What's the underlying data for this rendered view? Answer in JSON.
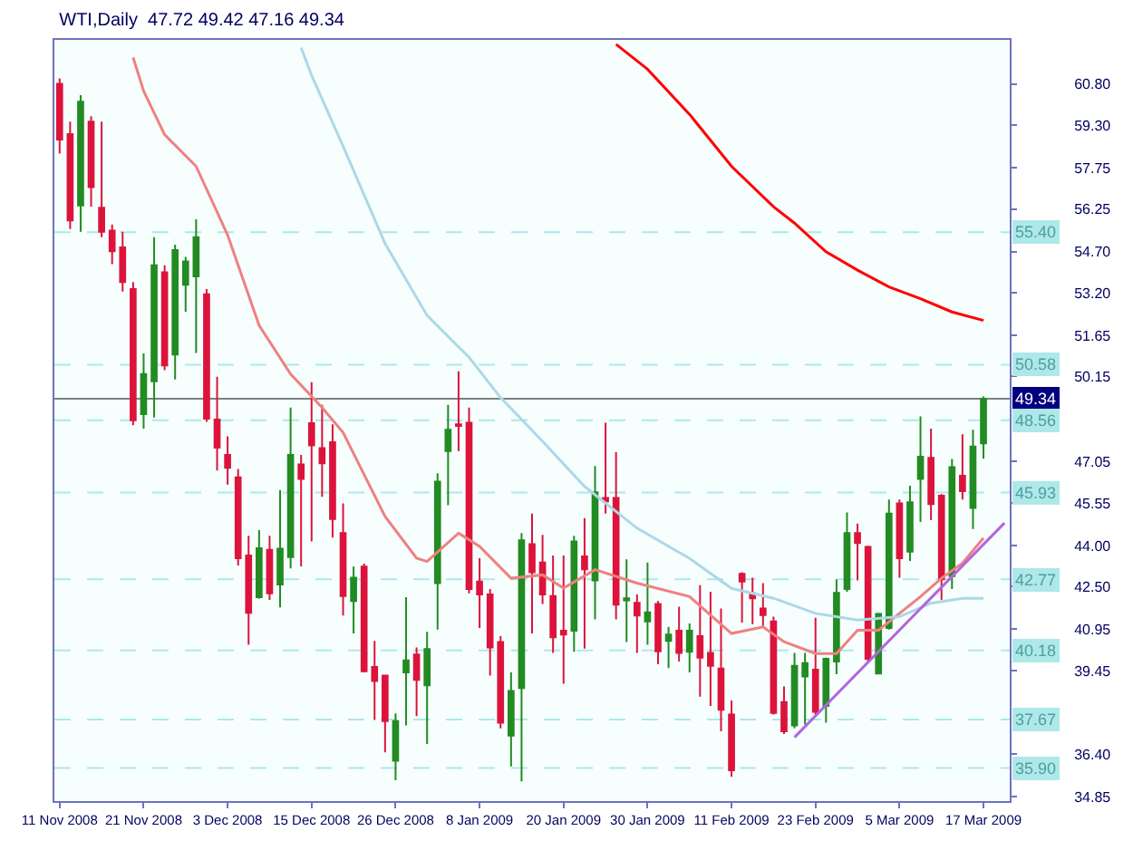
{
  "chart_data": {
    "type": "candlestick",
    "title": "WTI,Daily  47.72 49.42 47.16 49.34",
    "categories": [
      "11 Nov 2008",
      null,
      null,
      null,
      null,
      null,
      null,
      null,
      "21 Nov 2008",
      null,
      null,
      null,
      null,
      null,
      null,
      null,
      "3 Dec 2008",
      null,
      null,
      null,
      null,
      null,
      null,
      null,
      "15 Dec 2008",
      null,
      null,
      null,
      null,
      null,
      null,
      null,
      "26 Dec 2008",
      null,
      null,
      null,
      null,
      null,
      null,
      null,
      "8 Jan 2009",
      null,
      null,
      null,
      null,
      null,
      null,
      null,
      "20 Jan 2009",
      null,
      null,
      null,
      null,
      null,
      null,
      null,
      "30 Jan 2009",
      null,
      null,
      null,
      null,
      null,
      null,
      null,
      "11 Feb 2009",
      null,
      null,
      null,
      null,
      null,
      null,
      null,
      "23 Feb 2009",
      null,
      null,
      null,
      null,
      null,
      null,
      null,
      "5 Mar 2009",
      null,
      null,
      null,
      null,
      null,
      null,
      null,
      "17 Mar 2009",
      null,
      null
    ],
    "ohlc": [
      [
        60.8,
        61.0,
        58.26,
        58.77
      ],
      [
        58.97,
        59.42,
        55.52,
        55.83
      ],
      [
        56.37,
        60.39,
        55.42,
        60.15
      ],
      [
        59.42,
        59.62,
        56.33,
        57.04
      ],
      [
        56.29,
        59.42,
        55.22,
        55.42
      ],
      [
        55.46,
        55.68,
        54.24,
        54.71
      ],
      [
        54.85,
        55.42,
        53.24,
        53.59
      ],
      [
        53.33,
        53.59,
        48.38,
        48.56
      ],
      [
        48.78,
        50.99,
        48.25,
        50.24
      ],
      [
        49.98,
        55.22,
        48.66,
        54.2
      ],
      [
        53.94,
        54.2,
        50.38,
        50.55
      ],
      [
        50.95,
        54.95,
        50.04,
        54.75
      ],
      [
        53.49,
        54.5,
        52.51,
        54.34
      ],
      [
        53.79,
        55.87,
        51.01,
        55.22
      ],
      [
        53.14,
        53.33,
        48.5,
        48.62
      ],
      [
        48.58,
        50.14,
        46.73,
        47.56
      ],
      [
        47.3,
        47.97,
        46.22,
        46.83
      ],
      [
        46.48,
        46.79,
        43.27,
        43.54
      ],
      [
        43.64,
        44.35,
        40.39,
        41.55
      ],
      [
        42.12,
        44.56,
        42.06,
        43.9
      ],
      [
        43.84,
        44.35,
        42.02,
        42.26
      ],
      [
        42.58,
        46.02,
        41.75,
        43.88
      ],
      [
        43.58,
        49.02,
        43.17,
        47.3
      ],
      [
        46.95,
        47.3,
        43.24,
        46.42
      ],
      [
        48.45,
        49.94,
        44.15,
        47.64
      ],
      [
        47.54,
        49.12,
        45.77,
        46.99
      ],
      [
        47.76,
        48.41,
        44.29,
        44.96
      ],
      [
        44.45,
        45.53,
        41.45,
        42.16
      ],
      [
        41.98,
        43.23,
        40.8,
        42.83
      ],
      [
        43.23,
        43.34,
        39.38,
        39.42
      ],
      [
        39.58,
        40.53,
        37.65,
        39.07
      ],
      [
        39.27,
        39.3,
        36.47,
        37.61
      ],
      [
        36.17,
        37.89,
        35.46,
        37.61
      ],
      [
        39.38,
        42.12,
        37.45,
        39.82
      ],
      [
        40.03,
        40.29,
        37.79,
        39.11
      ],
      [
        38.91,
        40.86,
        36.78,
        40.23
      ],
      [
        42.63,
        46.63,
        40.94,
        46.32
      ],
      [
        47.44,
        49.12,
        45.47,
        48.21
      ],
      [
        48.41,
        50.34,
        47.44,
        48.35
      ],
      [
        48.47,
        49.02,
        42.26,
        42.42
      ],
      [
        42.69,
        43.54,
        41.0,
        42.22
      ],
      [
        42.22,
        42.42,
        39.27,
        40.29
      ],
      [
        40.49,
        40.7,
        37.35,
        37.55
      ],
      [
        37.08,
        39.38,
        35.96,
        38.71
      ],
      [
        38.81,
        44.45,
        35.42,
        44.19
      ],
      [
        44.05,
        45.16,
        40.8,
        43.03
      ],
      [
        43.38,
        44.39,
        41.87,
        42.22
      ],
      [
        42.16,
        43.64,
        40.09,
        40.66
      ],
      [
        40.9,
        43.64,
        38.97,
        40.76
      ],
      [
        40.9,
        44.35,
        40.13,
        44.15
      ],
      [
        43.6,
        45.0,
        40.25,
        43.13
      ],
      [
        42.73,
        46.89,
        41.31,
        45.94
      ],
      [
        45.73,
        48.47,
        45.16,
        45.61
      ],
      [
        45.73,
        47.4,
        41.31,
        41.85
      ],
      [
        42.0,
        43.5,
        40.49,
        42.08
      ],
      [
        41.91,
        42.22,
        40.09,
        41.45
      ],
      [
        41.24,
        43.38,
        40.39,
        41.57
      ],
      [
        41.87,
        41.98,
        39.68,
        40.15
      ],
      [
        40.53,
        41.04,
        39.54,
        40.76
      ],
      [
        40.9,
        41.77,
        39.78,
        40.09
      ],
      [
        40.13,
        41.16,
        39.38,
        40.9
      ],
      [
        40.7,
        42.56,
        38.5,
        39.92
      ],
      [
        40.09,
        42.32,
        38.16,
        39.62
      ],
      [
        39.52,
        41.71,
        37.24,
        38.02
      ],
      [
        37.85,
        38.36,
        35.58,
        35.82
      ],
      [
        42.97,
        43.03,
        41.2,
        42.69
      ],
      [
        42.26,
        42.83,
        41.14,
        42.08
      ],
      [
        41.71,
        42.63,
        41.0,
        41.47
      ],
      [
        41.24,
        41.41,
        37.85,
        37.91
      ],
      [
        38.3,
        38.87,
        37.14,
        37.24
      ],
      [
        37.45,
        40.09,
        37.35,
        39.62
      ],
      [
        39.23,
        40.09,
        37.49,
        39.72
      ],
      [
        39.48,
        41.37,
        37.85,
        37.95
      ],
      [
        38.16,
        39.92,
        37.55,
        39.88
      ],
      [
        39.78,
        42.77,
        39.32,
        42.28
      ],
      [
        42.42,
        45.2,
        42.32,
        44.45
      ],
      [
        44.45,
        44.8,
        42.73,
        44.09
      ],
      [
        43.95,
        43.99,
        39.78,
        39.88
      ],
      [
        39.34,
        41.55,
        39.32,
        41.51
      ],
      [
        41.0,
        45.67,
        40.94,
        45.16
      ],
      [
        45.53,
        45.67,
        42.83,
        43.54
      ],
      [
        43.78,
        46.18,
        43.44,
        45.57
      ],
      [
        46.42,
        48.7,
        44.86,
        47.23
      ],
      [
        47.19,
        48.25,
        44.92,
        45.51
      ],
      [
        45.81,
        45.87,
        42.02,
        42.77
      ],
      [
        42.89,
        47.15,
        42.42,
        46.85
      ],
      [
        46.54,
        48.05,
        45.67,
        45.98
      ],
      [
        45.37,
        48.21,
        44.6,
        47.6
      ],
      [
        47.72,
        49.42,
        47.16,
        49.34
      ],
      null,
      null
    ],
    "colors": [
      "#dc143c",
      "#dc143c",
      "#228b22",
      "#dc143c",
      "#dc143c",
      "#dc143c",
      "#dc143c",
      "#dc143c",
      "#228b22",
      "#228b22",
      "#dc143c",
      "#228b22",
      "#228b22",
      "#228b22",
      "#dc143c",
      "#dc143c",
      "#dc143c",
      "#dc143c",
      "#dc143c",
      "#228b22",
      "#dc143c",
      "#228b22",
      "#228b22",
      "#dc143c",
      "#dc143c",
      "#dc143c",
      "#dc143c",
      "#dc143c",
      "#228b22",
      "#dc143c",
      "#dc143c",
      "#dc143c",
      "#228b22",
      "#228b22",
      "#dc143c",
      "#228b22",
      "#228b22",
      "#228b22",
      "#dc143c",
      "#dc143c",
      "#dc143c",
      "#dc143c",
      "#dc143c",
      "#228b22",
      "#228b22",
      "#dc143c",
      "#dc143c",
      "#dc143c",
      "#dc143c",
      "#228b22",
      "#dc143c",
      "#228b22",
      "#dc143c",
      "#dc143c",
      "#228b22",
      "#dc143c",
      "#228b22",
      "#dc143c",
      "#228b22",
      "#dc143c",
      "#228b22",
      "#dc143c",
      "#dc143c",
      "#dc143c",
      "#dc143c",
      "#dc143c",
      "#dc143c",
      "#dc143c",
      "#dc143c",
      "#dc143c",
      "#228b22",
      "#228b22",
      "#dc143c",
      "#228b22",
      "#228b22",
      "#228b22",
      "#dc143c",
      "#dc143c",
      "#228b22",
      "#228b22",
      "#dc143c",
      "#228b22",
      "#228b22",
      "#dc143c",
      "#dc143c",
      "#228b22",
      "#dc143c",
      "#228b22",
      "#228b22",
      null,
      null
    ],
    "series": [
      {
        "type": "line",
        "color": "#ff0000",
        "values": [
          null,
          null,
          null,
          null,
          null,
          null,
          null,
          null,
          null,
          null,
          null,
          null,
          null,
          null,
          null,
          null,
          null,
          null,
          null,
          null,
          null,
          null,
          null,
          null,
          null,
          null,
          null,
          null,
          null,
          null,
          null,
          null,
          null,
          null,
          null,
          null,
          null,
          null,
          null,
          null,
          null,
          null,
          null,
          null,
          null,
          null,
          null,
          null,
          null,
          null,
          null,
          null,
          null,
          62.24,
          null,
          null,
          61.33,
          null,
          null,
          null,
          59.69,
          null,
          null,
          null,
          57.8,
          null,
          null,
          null,
          56.33,
          null,
          55.73,
          null,
          null,
          54.69,
          null,
          null,
          54.02,
          null,
          null,
          53.41,
          null,
          null,
          52.98,
          null,
          null,
          52.5,
          null,
          null,
          52.19,
          null,
          null
        ]
      },
      {
        "type": "line",
        "color": "#f08080",
        "values": [
          null,
          null,
          null,
          null,
          null,
          null,
          null,
          61.76,
          60.54,
          null,
          58.95,
          null,
          null,
          57.8,
          null,
          null,
          55.3,
          null,
          null,
          52.01,
          null,
          null,
          50.24,
          null,
          null,
          49.02,
          null,
          48.11,
          null,
          null,
          null,
          45.06,
          null,
          null,
          43.54,
          43.42,
          null,
          null,
          44.45,
          null,
          43.97,
          null,
          null,
          42.81,
          null,
          null,
          42.93,
          null,
          42.45,
          null,
          null,
          43.12,
          null,
          null,
          null,
          42.63,
          null,
          null,
          null,
          null,
          42.14,
          null,
          null,
          null,
          40.8,
          null,
          null,
          41.04,
          null,
          40.5,
          null,
          null,
          40.07,
          null,
          40.07,
          null,
          40.92,
          null,
          40.92,
          null,
          null,
          null,
          42.14,
          null,
          42.81,
          null,
          43.36,
          null,
          44.27,
          null,
          null
        ]
      },
      {
        "type": "line",
        "color": "#add8e6",
        "values": [
          null,
          null,
          null,
          null,
          null,
          null,
          null,
          null,
          null,
          null,
          null,
          null,
          null,
          null,
          null,
          null,
          null,
          null,
          null,
          null,
          null,
          null,
          null,
          62.12,
          61.11,
          null,
          null,
          58.53,
          null,
          null,
          null,
          54.99,
          null,
          null,
          null,
          52.37,
          null,
          null,
          null,
          50.85,
          null,
          null,
          49.38,
          null,
          null,
          null,
          47.79,
          null,
          null,
          null,
          46.15,
          null,
          null,
          null,
          null,
          44.63,
          null,
          null,
          null,
          null,
          43.53,
          null,
          null,
          null,
          42.44,
          null,
          null,
          null,
          42.08,
          null,
          null,
          null,
          41.53,
          null,
          null,
          null,
          41.29,
          null,
          null,
          null,
          41.41,
          null,
          null,
          41.9,
          null,
          null,
          42.08,
          null,
          42.08,
          null,
          null
        ]
      },
      {
        "type": "line",
        "color": "#b266e0",
        "values": [
          null,
          null,
          null,
          null,
          null,
          null,
          null,
          null,
          null,
          null,
          null,
          null,
          null,
          null,
          null,
          null,
          null,
          null,
          null,
          null,
          null,
          null,
          null,
          null,
          null,
          null,
          null,
          null,
          null,
          null,
          null,
          null,
          null,
          null,
          null,
          null,
          null,
          null,
          null,
          null,
          null,
          null,
          null,
          null,
          null,
          null,
          null,
          null,
          null,
          null,
          null,
          null,
          null,
          null,
          null,
          null,
          null,
          null,
          null,
          null,
          null,
          null,
          null,
          null,
          null,
          null,
          null,
          null,
          null,
          null,
          37.02,
          null,
          null,
          null,
          null,
          null,
          null,
          null,
          null,
          null,
          null,
          null,
          null,
          null,
          null,
          null,
          null,
          null,
          null,
          null,
          44.82
        ]
      }
    ],
    "ylim": [
      34.7,
      62.4
    ],
    "yticks": [
      {
        "value": 60.8,
        "label": "60.80"
      },
      {
        "value": 59.3,
        "label": "59.30"
      },
      57.75,
      56.25,
      {
        "value": 54.7,
        "label": "54.70"
      },
      {
        "value": 53.2,
        "label": "53.20"
      },
      51.65,
      50.15,
      47.05,
      45.55,
      {
        "value": 44.0,
        "label": "44.00"
      },
      {
        "value": 42.5,
        "label": "42.50"
      },
      40.95,
      39.45,
      {
        "value": 36.4,
        "label": "36.40"
      },
      34.85
    ],
    "ref_lines": [
      {
        "axis": "y",
        "value": 55.4,
        "label": "55.40",
        "color": "#aee8e8",
        "line_style": "dashed"
      },
      {
        "axis": "y",
        "value": 50.58,
        "label": "50.58",
        "color": "#aee8e8",
        "line_style": "dashed"
      },
      {
        "axis": "y",
        "value": 49.34,
        "label": "49.34",
        "color": "#808080",
        "line_style": "solid"
      },
      {
        "axis": "y",
        "value": 48.56,
        "label": "48.56",
        "color": "#aee8e8",
        "line_style": "dashed"
      },
      {
        "axis": "y",
        "value": 45.93,
        "label": "45.93",
        "color": "#aee8e8",
        "line_style": "dashed"
      },
      {
        "axis": "y",
        "value": 42.77,
        "label": "42.77",
        "color": "#aee8e8",
        "line_style": "dashed"
      },
      {
        "axis": "y",
        "value": 40.18,
        "label": "40.18",
        "color": "#aee8e8",
        "line_style": "dashed"
      },
      {
        "axis": "y",
        "value": 37.67,
        "label": "37.67",
        "color": "#aee8e8",
        "line_style": "dashed"
      },
      {
        "axis": "y",
        "value": 35.9,
        "label": "35.90",
        "color": "#aee8e8",
        "line_style": "dashed"
      }
    ],
    "grid": false
  }
}
